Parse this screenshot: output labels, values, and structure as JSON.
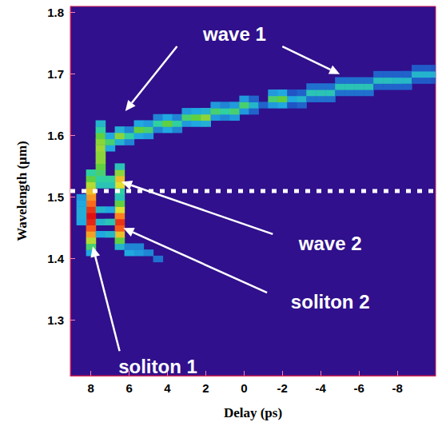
{
  "chart_data": {
    "type": "heatmap",
    "xlabel": "Delay (ps)",
    "ylabel": "Wavelength (µm)",
    "xlim": [
      9.07,
      -10
    ],
    "ylim": [
      1.21,
      1.81
    ],
    "xticks": [
      8,
      6,
      4,
      2,
      0,
      -2,
      -4,
      -6,
      -8
    ],
    "yticks": [
      1.3,
      1.4,
      1.5,
      1.6,
      1.7,
      1.8
    ],
    "grid": false,
    "zlim": [
      0,
      1
    ],
    "cell_size": [
      0.5,
      0.01
    ],
    "reference_line": 1.51,
    "annotations": [
      "wave 1",
      "wave 2",
      "soliton 2",
      "soliton 1"
    ],
    "cells": [
      [
        8,
        1.41,
        0.3
      ],
      [
        8,
        1.42,
        0.5
      ],
      [
        8,
        1.43,
        0.65
      ],
      [
        8,
        1.44,
        0.8
      ],
      [
        8,
        1.45,
        0.9
      ],
      [
        8,
        1.46,
        0.97
      ],
      [
        8,
        1.47,
        1.0
      ],
      [
        8,
        1.48,
        0.95
      ],
      [
        8,
        1.49,
        0.88
      ],
      [
        8,
        1.5,
        0.82
      ],
      [
        8,
        1.51,
        0.75
      ],
      [
        8,
        1.52,
        0.65
      ],
      [
        8,
        1.53,
        0.55
      ],
      [
        8,
        1.54,
        0.45
      ],
      [
        8.5,
        1.46,
        0.3
      ],
      [
        8.5,
        1.47,
        0.32
      ],
      [
        8.5,
        1.48,
        0.32
      ],
      [
        8.5,
        1.49,
        0.3
      ],
      [
        8.5,
        1.5,
        0.28
      ],
      [
        7.5,
        1.52,
        0.4
      ],
      [
        7.5,
        1.53,
        0.45
      ],
      [
        7.5,
        1.54,
        0.5
      ],
      [
        7.5,
        1.55,
        0.55
      ],
      [
        7.5,
        1.56,
        0.6
      ],
      [
        7.5,
        1.57,
        0.6
      ],
      [
        7.5,
        1.58,
        0.62
      ],
      [
        7.5,
        1.59,
        0.6
      ],
      [
        7.5,
        1.6,
        0.55
      ],
      [
        7.5,
        1.61,
        0.45
      ],
      [
        7.5,
        1.62,
        0.35
      ],
      [
        7.5,
        1.44,
        0.3
      ],
      [
        7.5,
        1.46,
        0.35
      ],
      [
        7.5,
        1.48,
        0.35
      ],
      [
        6.5,
        1.42,
        0.35
      ],
      [
        6.5,
        1.43,
        0.55
      ],
      [
        6.5,
        1.44,
        0.75
      ],
      [
        6.5,
        1.45,
        0.9
      ],
      [
        6.5,
        1.46,
        0.95
      ],
      [
        6.5,
        1.47,
        0.85
      ],
      [
        6.5,
        1.48,
        0.7
      ],
      [
        6.5,
        1.49,
        0.55
      ],
      [
        6.5,
        1.5,
        0.4
      ],
      [
        7,
        1.44,
        0.35
      ],
      [
        7,
        1.46,
        0.4
      ],
      [
        7,
        1.48,
        0.3
      ],
      [
        6.5,
        1.51,
        0.45
      ],
      [
        6.5,
        1.52,
        0.7
      ],
      [
        6.5,
        1.53,
        0.75
      ],
      [
        6.5,
        1.54,
        0.6
      ],
      [
        6.5,
        1.55,
        0.4
      ],
      [
        7,
        1.52,
        0.4
      ],
      [
        7,
        1.53,
        0.45
      ],
      [
        6,
        1.41,
        0.3
      ],
      [
        5.5,
        1.41,
        0.28
      ],
      [
        5,
        1.41,
        0.25
      ],
      [
        4.5,
        1.4,
        0.22
      ],
      [
        6,
        1.42,
        0.25
      ],
      [
        5.5,
        1.42,
        0.25
      ],
      [
        7,
        1.58,
        0.3
      ],
      [
        7,
        1.59,
        0.5
      ],
      [
        7,
        1.6,
        0.3
      ],
      [
        6.5,
        1.59,
        0.33
      ],
      [
        6.5,
        1.6,
        0.6
      ],
      [
        6.5,
        1.61,
        0.33
      ],
      [
        6,
        1.59,
        0.25
      ],
      [
        6,
        1.6,
        0.45
      ],
      [
        6,
        1.61,
        0.25
      ],
      [
        5.5,
        1.6,
        0.3
      ],
      [
        5.5,
        1.61,
        0.55
      ],
      [
        5.5,
        1.62,
        0.3
      ],
      [
        5,
        1.6,
        0.28
      ],
      [
        5,
        1.61,
        0.5
      ],
      [
        5,
        1.62,
        0.28
      ],
      [
        4.5,
        1.61,
        0.25
      ],
      [
        4.5,
        1.62,
        0.45
      ],
      [
        4.5,
        1.63,
        0.25
      ],
      [
        4,
        1.61,
        0.3
      ],
      [
        4,
        1.62,
        0.55
      ],
      [
        4,
        1.63,
        0.3
      ],
      [
        3.5,
        1.61,
        0.25
      ],
      [
        3.5,
        1.62,
        0.45
      ],
      [
        3.5,
        1.63,
        0.25
      ],
      [
        3,
        1.62,
        0.28
      ],
      [
        3,
        1.63,
        0.5
      ],
      [
        3,
        1.64,
        0.28
      ],
      [
        2.5,
        1.62,
        0.3
      ],
      [
        2.5,
        1.63,
        0.55
      ],
      [
        2.5,
        1.64,
        0.3
      ],
      [
        2,
        1.62,
        0.33
      ],
      [
        2,
        1.63,
        0.6
      ],
      [
        2,
        1.64,
        0.33
      ],
      [
        1.5,
        1.63,
        0.28
      ],
      [
        1.5,
        1.64,
        0.5
      ],
      [
        1.5,
        1.65,
        0.28
      ],
      [
        1,
        1.63,
        0.25
      ],
      [
        1,
        1.64,
        0.45
      ],
      [
        1,
        1.65,
        0.25
      ],
      [
        0.5,
        1.63,
        0.28
      ],
      [
        0.5,
        1.64,
        0.5
      ],
      [
        0.5,
        1.65,
        0.28
      ],
      [
        0,
        1.64,
        0.28
      ],
      [
        0,
        1.65,
        0.5
      ],
      [
        0,
        1.66,
        0.28
      ],
      [
        -0.5,
        1.64,
        0.2
      ],
      [
        -0.5,
        1.65,
        0.35
      ],
      [
        -0.5,
        1.66,
        0.2
      ],
      [
        -1,
        1.65,
        0.2
      ],
      [
        -1.5,
        1.65,
        0.28
      ],
      [
        -1.5,
        1.66,
        0.5
      ],
      [
        -1.5,
        1.67,
        0.28
      ],
      [
        -2,
        1.65,
        0.3
      ],
      [
        -2,
        1.66,
        0.55
      ],
      [
        -2,
        1.67,
        0.3
      ],
      [
        -2.5,
        1.65,
        0.18
      ],
      [
        -2.5,
        1.66,
        0.3
      ],
      [
        -2.5,
        1.67,
        0.18
      ],
      [
        -3,
        1.65,
        0.2
      ],
      [
        -3,
        1.66,
        0.35
      ],
      [
        -3,
        1.67,
        0.2
      ],
      [
        -3.5,
        1.66,
        0.22
      ],
      [
        -3.5,
        1.67,
        0.4
      ],
      [
        -3.5,
        1.68,
        0.22
      ],
      [
        -4,
        1.66,
        0.22
      ],
      [
        -4,
        1.67,
        0.4
      ],
      [
        -4,
        1.68,
        0.22
      ],
      [
        -4.5,
        1.66,
        0.22
      ],
      [
        -4.5,
        1.67,
        0.4
      ],
      [
        -4.5,
        1.68,
        0.22
      ],
      [
        -5,
        1.67,
        0.22
      ],
      [
        -5,
        1.68,
        0.4
      ],
      [
        -5,
        1.69,
        0.22
      ],
      [
        -5.5,
        1.67,
        0.22
      ],
      [
        -5.5,
        1.68,
        0.4
      ],
      [
        -5.5,
        1.69,
        0.22
      ],
      [
        -6,
        1.67,
        0.22
      ],
      [
        -6,
        1.68,
        0.4
      ],
      [
        -6,
        1.69,
        0.22
      ],
      [
        -6.5,
        1.67,
        0.22
      ],
      [
        -6.5,
        1.68,
        0.4
      ],
      [
        -6.5,
        1.69,
        0.22
      ],
      [
        -7,
        1.68,
        0.2
      ],
      [
        -7,
        1.69,
        0.38
      ],
      [
        -7,
        1.7,
        0.2
      ],
      [
        -7.5,
        1.68,
        0.2
      ],
      [
        -7.5,
        1.69,
        0.38
      ],
      [
        -7.5,
        1.7,
        0.2
      ],
      [
        -8,
        1.68,
        0.2
      ],
      [
        -8,
        1.69,
        0.36
      ],
      [
        -8,
        1.7,
        0.2
      ],
      [
        -8.5,
        1.68,
        0.2
      ],
      [
        -8.5,
        1.69,
        0.36
      ],
      [
        -8.5,
        1.7,
        0.2
      ],
      [
        -9,
        1.69,
        0.19
      ],
      [
        -9,
        1.7,
        0.35
      ],
      [
        -9,
        1.71,
        0.19
      ],
      [
        -9.5,
        1.69,
        0.19
      ],
      [
        -9.5,
        1.7,
        0.34
      ],
      [
        -9.5,
        1.71,
        0.19
      ],
      [
        -10,
        1.69,
        0.18
      ],
      [
        -10,
        1.7,
        0.33
      ],
      [
        -10,
        1.71,
        0.18
      ]
    ]
  }
}
